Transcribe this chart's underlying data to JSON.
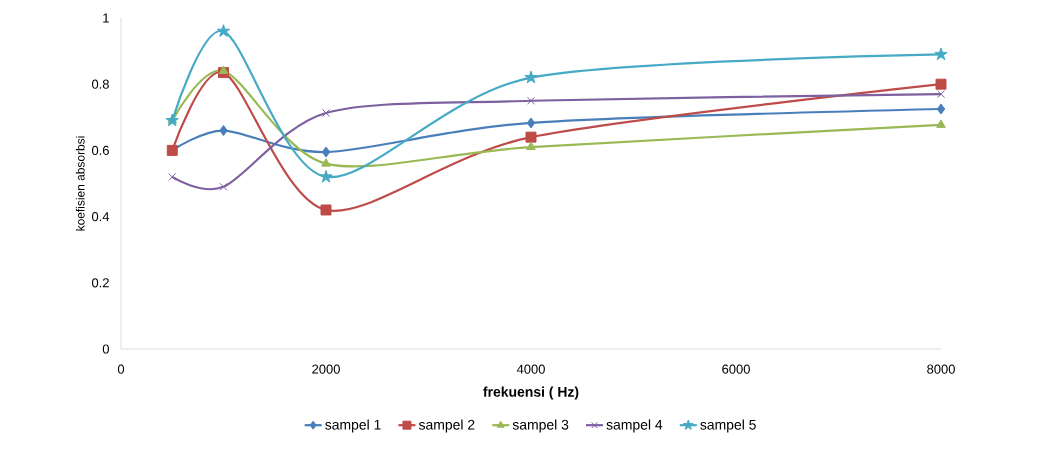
{
  "chart_data": {
    "type": "line",
    "xlabel": "frekuensi ( Hz)",
    "ylabel": "koefisien absorbsi",
    "x": [
      500,
      1000,
      2000,
      4000,
      8000
    ],
    "xlim": [
      0,
      8000
    ],
    "xticks": [
      0,
      2000,
      4000,
      6000,
      8000
    ],
    "ylim": [
      0,
      1
    ],
    "yticks": [
      0,
      0.2,
      0.4,
      0.6,
      0.8,
      1
    ],
    "grid": false,
    "legend": "bottom",
    "line_style": "solid",
    "series": [
      {
        "name": "sampel 1",
        "color": "#4a7ebb",
        "marker": "diamond",
        "values": [
          0.6,
          0.66,
          0.595,
          0.683,
          0.725
        ]
      },
      {
        "name": "sampel 2",
        "color": "#be4b48",
        "marker": "square",
        "values": [
          0.6,
          0.835,
          0.42,
          0.64,
          0.8
        ]
      },
      {
        "name": "sampel 3",
        "color": "#98b954",
        "marker": "triangle",
        "values": [
          0.69,
          0.84,
          0.56,
          0.61,
          0.677
        ]
      },
      {
        "name": "sampel 4",
        "color": "#7d60a0",
        "marker": "cross",
        "values": [
          0.52,
          0.49,
          0.713,
          0.75,
          0.77
        ]
      },
      {
        "name": "sampel 5",
        "color": "#46aac5",
        "marker": "star",
        "values": [
          0.69,
          0.96,
          0.52,
          0.82,
          0.89
        ]
      }
    ]
  }
}
